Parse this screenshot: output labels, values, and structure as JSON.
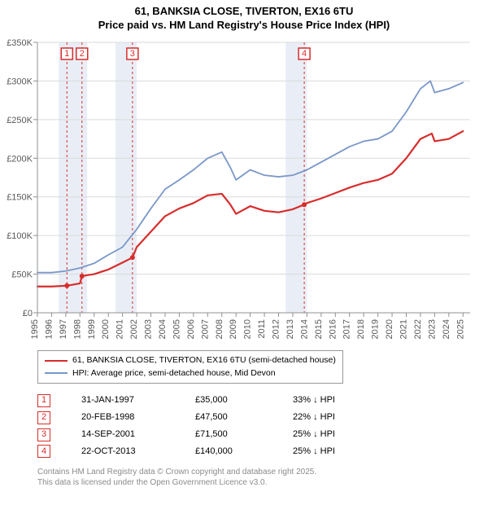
{
  "title": {
    "line1": "61, BANKSIA CLOSE, TIVERTON, EX16 6TU",
    "line2": "Price paid vs. HM Land Registry's House Price Index (HPI)"
  },
  "chart": {
    "type": "line",
    "background_color": "#ffffff",
    "plot_bg": "#ffffff",
    "grid_color": "#d9dadb",
    "shaded_band_color": "#e9eef6",
    "axis_color": "#8f9092",
    "tick_color": "#8f9092",
    "label_color": "#58595b",
    "xlim": [
      1995,
      2025.5
    ],
    "ylim": [
      0,
      350000
    ],
    "ytick_step": 50000,
    "ytick_labels": [
      "£0",
      "£50K",
      "£100K",
      "£150K",
      "£200K",
      "£250K",
      "£300K",
      "£350K"
    ],
    "xticks": [
      1995,
      1996,
      1997,
      1998,
      1999,
      2000,
      2001,
      2002,
      2003,
      2004,
      2005,
      2006,
      2007,
      2008,
      2009,
      2010,
      2011,
      2012,
      2013,
      2014,
      2015,
      2016,
      2017,
      2018,
      2019,
      2020,
      2021,
      2022,
      2023,
      2024,
      2025
    ],
    "shaded_bands": [
      [
        1996.5,
        1998.5
      ],
      [
        2000.5,
        2002.0
      ],
      [
        2012.5,
        2014.0
      ]
    ],
    "sale_markers": [
      {
        "n": "1",
        "x": 1997.08,
        "color": "#d82c2c"
      },
      {
        "n": "2",
        "x": 1998.14,
        "color": "#d82c2c"
      },
      {
        "n": "3",
        "x": 2001.7,
        "color": "#d82c2c"
      },
      {
        "n": "4",
        "x": 2013.81,
        "color": "#d82c2c"
      }
    ],
    "series": [
      {
        "name": "price_paid",
        "color": "#d82c2c",
        "width": 2.2,
        "points": [
          [
            1995,
            34000
          ],
          [
            1996,
            34000
          ],
          [
            1997,
            35000
          ],
          [
            1997.08,
            35000
          ],
          [
            1998,
            38000
          ],
          [
            1998.14,
            47500
          ],
          [
            1999,
            50000
          ],
          [
            2000,
            56000
          ],
          [
            2001,
            65000
          ],
          [
            2001.7,
            71500
          ],
          [
            2002,
            85000
          ],
          [
            2003,
            105000
          ],
          [
            2004,
            125000
          ],
          [
            2005,
            135000
          ],
          [
            2006,
            142000
          ],
          [
            2007,
            152000
          ],
          [
            2008,
            154000
          ],
          [
            2008.6,
            140000
          ],
          [
            2009,
            128000
          ],
          [
            2010,
            138000
          ],
          [
            2011,
            132000
          ],
          [
            2012,
            130000
          ],
          [
            2013,
            134000
          ],
          [
            2013.81,
            140000
          ],
          [
            2014,
            142000
          ],
          [
            2015,
            148000
          ],
          [
            2016,
            155000
          ],
          [
            2017,
            162000
          ],
          [
            2018,
            168000
          ],
          [
            2019,
            172000
          ],
          [
            2020,
            180000
          ],
          [
            2021,
            200000
          ],
          [
            2022,
            225000
          ],
          [
            2022.8,
            232000
          ],
          [
            2023,
            222000
          ],
          [
            2024,
            225000
          ],
          [
            2025,
            235000
          ]
        ],
        "dots": [
          [
            1997.08,
            35000
          ],
          [
            1998.14,
            47500
          ],
          [
            2001.7,
            71500
          ],
          [
            2013.81,
            140000
          ]
        ]
      },
      {
        "name": "hpi",
        "color": "#7a97c9",
        "width": 1.8,
        "points": [
          [
            1995,
            52000
          ],
          [
            1996,
            52000
          ],
          [
            1997,
            54000
          ],
          [
            1998,
            58000
          ],
          [
            1999,
            64000
          ],
          [
            2000,
            75000
          ],
          [
            2001,
            85000
          ],
          [
            2002,
            108000
          ],
          [
            2003,
            135000
          ],
          [
            2004,
            160000
          ],
          [
            2005,
            172000
          ],
          [
            2006,
            185000
          ],
          [
            2007,
            200000
          ],
          [
            2008,
            208000
          ],
          [
            2008.6,
            188000
          ],
          [
            2009,
            172000
          ],
          [
            2010,
            185000
          ],
          [
            2011,
            178000
          ],
          [
            2012,
            176000
          ],
          [
            2013,
            178000
          ],
          [
            2014,
            185000
          ],
          [
            2015,
            195000
          ],
          [
            2016,
            205000
          ],
          [
            2017,
            215000
          ],
          [
            2018,
            222000
          ],
          [
            2019,
            225000
          ],
          [
            2020,
            235000
          ],
          [
            2021,
            260000
          ],
          [
            2022,
            290000
          ],
          [
            2022.7,
            300000
          ],
          [
            2023,
            285000
          ],
          [
            2024,
            290000
          ],
          [
            2025,
            298000
          ]
        ]
      }
    ]
  },
  "legend": {
    "items": [
      {
        "color": "#d82c2c",
        "width": 2.5,
        "label": "61, BANKSIA CLOSE, TIVERTON, EX16 6TU (semi-detached house)"
      },
      {
        "color": "#7a97c9",
        "width": 2,
        "label": "HPI: Average price, semi-detached house, Mid Devon"
      }
    ]
  },
  "sales": [
    {
      "n": "1",
      "date": "31-JAN-1997",
      "price": "£35,000",
      "diff": "33% ↓ HPI",
      "color": "#d82c2c"
    },
    {
      "n": "2",
      "date": "20-FEB-1998",
      "price": "£47,500",
      "diff": "22% ↓ HPI",
      "color": "#d82c2c"
    },
    {
      "n": "3",
      "date": "14-SEP-2001",
      "price": "£71,500",
      "diff": "25% ↓ HPI",
      "color": "#d82c2c"
    },
    {
      "n": "4",
      "date": "22-OCT-2013",
      "price": "£140,000",
      "diff": "25% ↓ HPI",
      "color": "#d82c2c"
    }
  ],
  "attribution": {
    "line1": "Contains HM Land Registry data © Crown copyright and database right 2025.",
    "line2": "This data is licensed under the Open Government Licence v3.0."
  }
}
